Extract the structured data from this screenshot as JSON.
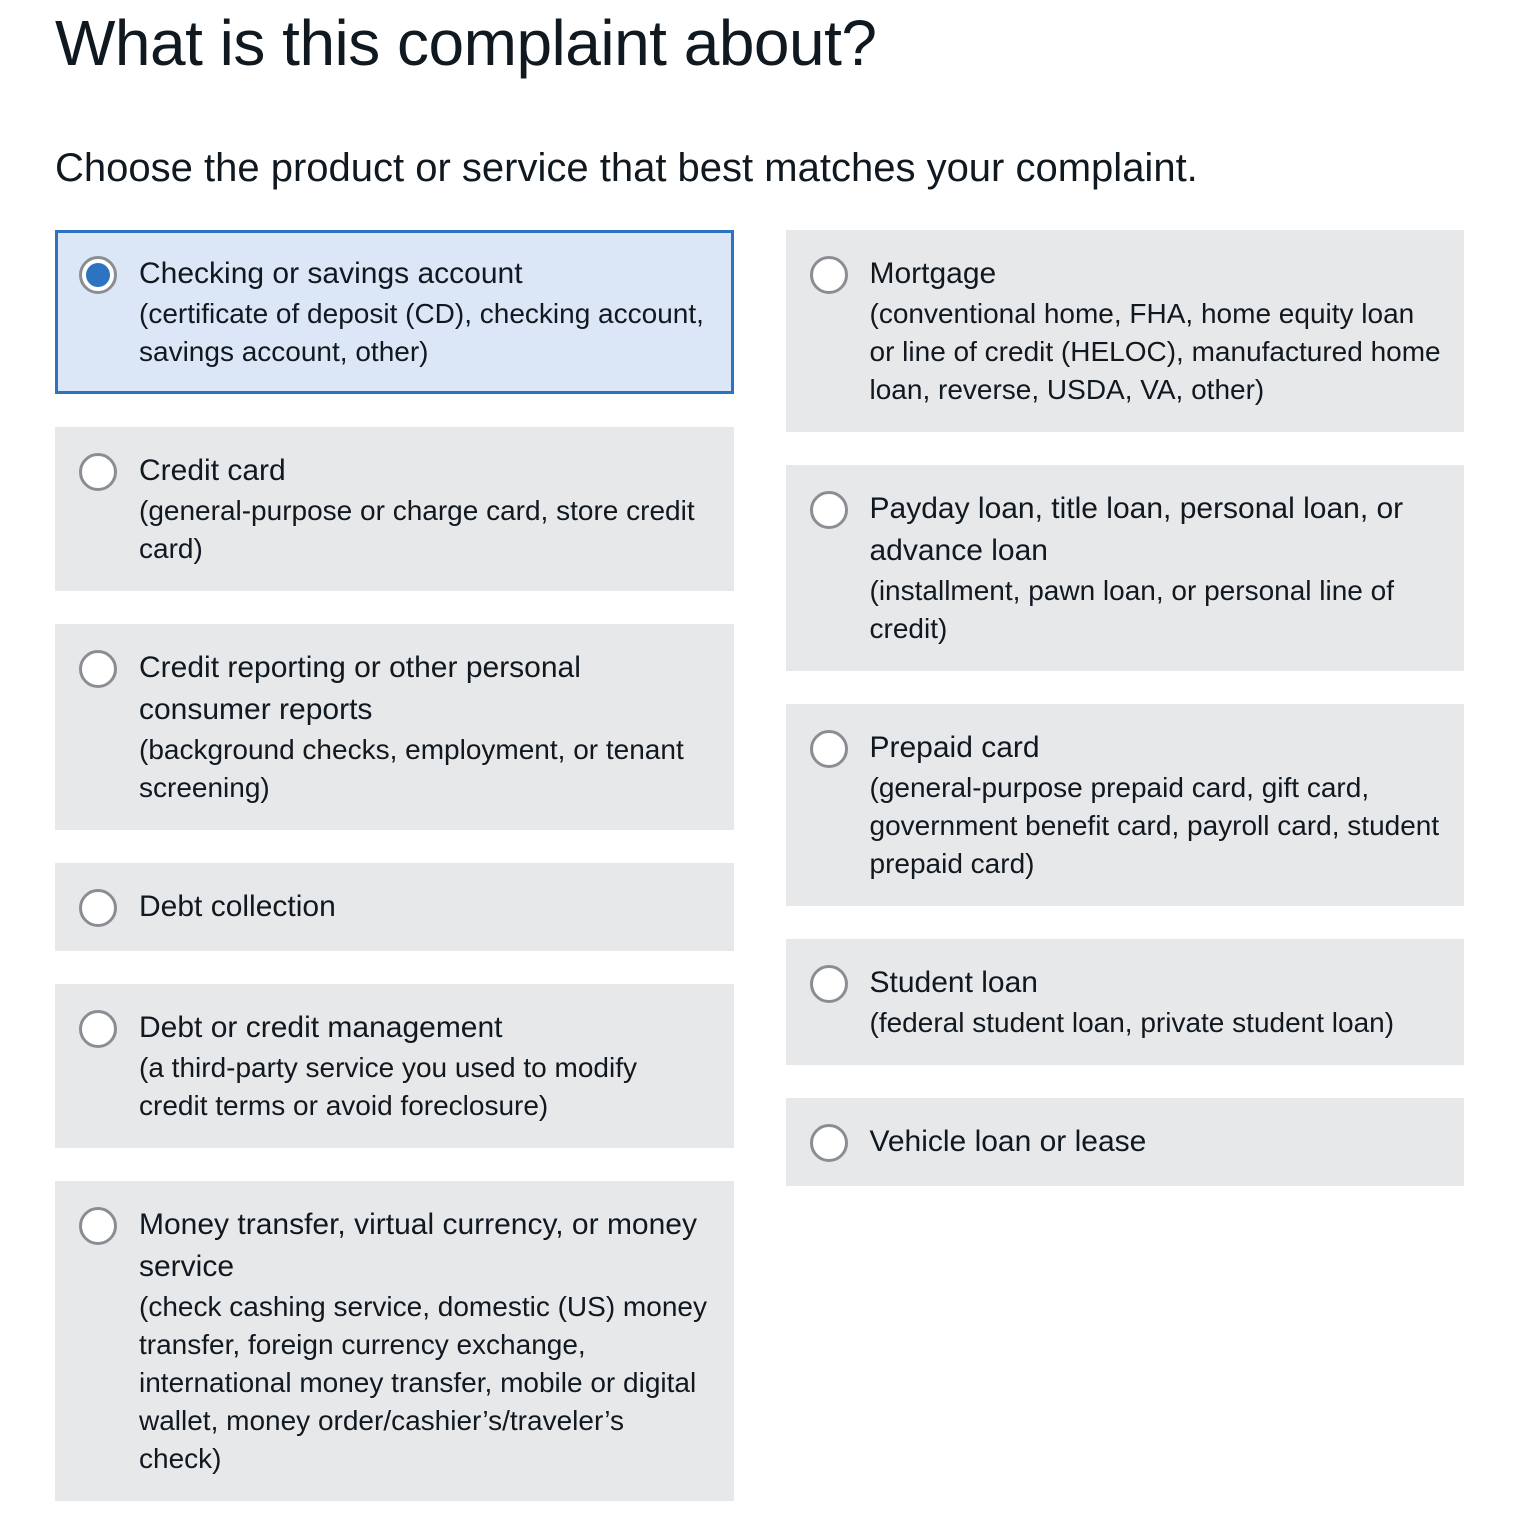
{
  "page": {
    "title": "What is this complaint about?",
    "subtitle": "Choose the product or service that best matches your complaint."
  },
  "colors": {
    "accent": "#2E72C2",
    "selected_bg": "#DBE7F6",
    "option_bg": "#E7E8E9",
    "text": "#101820"
  },
  "options": {
    "left": [
      {
        "label": "Checking or savings account",
        "description": "(certificate of deposit (CD), checking account, savings account, other)",
        "selected": true
      },
      {
        "label": "Credit card",
        "description": "(general-purpose or charge card, store credit card)",
        "selected": false
      },
      {
        "label": "Credit reporting or other personal consumer reports",
        "description": "(background checks, employment, or tenant screening)",
        "selected": false
      },
      {
        "label": "Debt collection",
        "description": "",
        "selected": false
      },
      {
        "label": "Debt or credit management",
        "description": "(a third-party service you used to modify credit terms or avoid foreclosure)",
        "selected": false
      },
      {
        "label": "Money transfer, virtual currency, or money service",
        "description": "(check cashing service, domestic (US) money transfer, foreign currency exchange, international money transfer, mobile or digital wallet, money order/cashier’s/traveler’s check)",
        "selected": false
      }
    ],
    "right": [
      {
        "label": "Mortgage",
        "description": "(conventional home, FHA, home equity loan or line of credit (HELOC), manufactured home loan, reverse, USDA, VA, other)",
        "selected": false
      },
      {
        "label": "Payday loan, title loan, personal loan, or advance loan",
        "description": "(installment, pawn loan, or personal line of credit)",
        "selected": false
      },
      {
        "label": "Prepaid card",
        "description": "(general-purpose prepaid card, gift card, government benefit card, payroll card, student prepaid card)",
        "selected": false
      },
      {
        "label": "Student loan",
        "description": "(federal student loan, private student loan)",
        "selected": false
      },
      {
        "label": "Vehicle loan or lease",
        "description": "",
        "selected": false
      }
    ]
  }
}
